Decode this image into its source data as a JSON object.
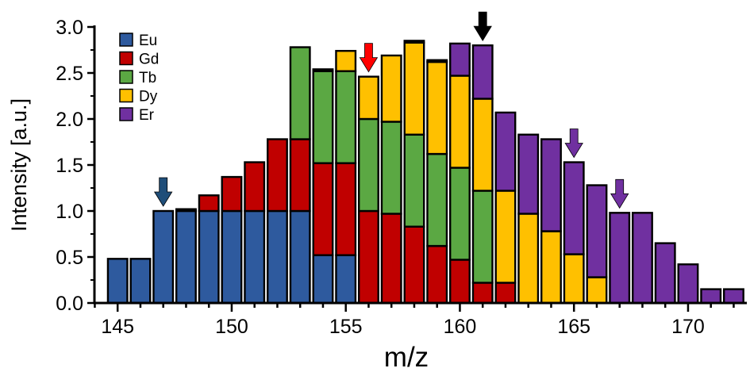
{
  "chart_data": {
    "type": "bar",
    "stacked": true,
    "xlabel": "m/z",
    "ylabel": "Intensity [a.u.]",
    "xlim": [
      143.5,
      172.5
    ],
    "ylim": [
      0,
      3.0
    ],
    "x_ticks": [
      145,
      150,
      155,
      160,
      165,
      170
    ],
    "y_ticks": [
      "0.0",
      "0.5",
      "1.0",
      "1.5",
      "2.0",
      "2.5",
      "3.0"
    ],
    "grid": false,
    "legend_position": "top-left",
    "series": [
      {
        "name": "Eu",
        "color": "#2e5a9e"
      },
      {
        "name": "Gd",
        "color": "#c00000"
      },
      {
        "name": "Tb",
        "color": "#5ba843"
      },
      {
        "name": "Dy",
        "color": "#ffc000"
      },
      {
        "name": "Er",
        "color": "#7030a0"
      }
    ],
    "bars": [
      {
        "x": 145,
        "segments": [
          {
            "s": "Eu",
            "v": 0.48
          }
        ]
      },
      {
        "x": 146,
        "segments": [
          {
            "s": "Eu",
            "v": 0.48
          }
        ]
      },
      {
        "x": 147,
        "segments": [
          {
            "s": "Eu",
            "v": 1.0
          }
        ]
      },
      {
        "x": 148,
        "segments": [
          {
            "s": "Eu",
            "v": 1.0
          },
          {
            "s": "Gd",
            "v": 0.02
          }
        ]
      },
      {
        "x": 149,
        "segments": [
          {
            "s": "Eu",
            "v": 1.0
          },
          {
            "s": "Gd",
            "v": 0.17
          }
        ]
      },
      {
        "x": 150,
        "segments": [
          {
            "s": "Eu",
            "v": 1.0
          },
          {
            "s": "Gd",
            "v": 0.37
          }
        ]
      },
      {
        "x": 151,
        "segments": [
          {
            "s": "Eu",
            "v": 1.0
          },
          {
            "s": "Gd",
            "v": 0.53
          }
        ]
      },
      {
        "x": 152,
        "segments": [
          {
            "s": "Eu",
            "v": 1.0
          },
          {
            "s": "Gd",
            "v": 0.78
          }
        ]
      },
      {
        "x": 153,
        "segments": [
          {
            "s": "Eu",
            "v": 1.0
          },
          {
            "s": "Gd",
            "v": 0.78
          },
          {
            "s": "Tb",
            "v": 1.0
          }
        ]
      },
      {
        "x": 154,
        "segments": [
          {
            "s": "Eu",
            "v": 0.52
          },
          {
            "s": "Gd",
            "v": 1.0
          },
          {
            "s": "Tb",
            "v": 1.0
          },
          {
            "s": "Dy",
            "v": 0.02
          }
        ]
      },
      {
        "x": 155,
        "segments": [
          {
            "s": "Eu",
            "v": 0.52
          },
          {
            "s": "Gd",
            "v": 1.0
          },
          {
            "s": "Tb",
            "v": 1.0
          },
          {
            "s": "Dy",
            "v": 0.22
          }
        ]
      },
      {
        "x": 156,
        "segments": [
          {
            "s": "Gd",
            "v": 1.0
          },
          {
            "s": "Tb",
            "v": 1.0
          },
          {
            "s": "Dy",
            "v": 0.46
          }
        ]
      },
      {
        "x": 157,
        "segments": [
          {
            "s": "Gd",
            "v": 0.97
          },
          {
            "s": "Tb",
            "v": 1.0
          },
          {
            "s": "Dy",
            "v": 0.72
          }
        ]
      },
      {
        "x": 158,
        "segments": [
          {
            "s": "Gd",
            "v": 0.83
          },
          {
            "s": "Tb",
            "v": 1.0
          },
          {
            "s": "Dy",
            "v": 1.0
          },
          {
            "s": "Er",
            "v": 0.02
          }
        ]
      },
      {
        "x": 159,
        "segments": [
          {
            "s": "Gd",
            "v": 0.62
          },
          {
            "s": "Tb",
            "v": 1.0
          },
          {
            "s": "Dy",
            "v": 1.0
          },
          {
            "s": "Er",
            "v": 0.02
          }
        ]
      },
      {
        "x": 160,
        "segments": [
          {
            "s": "Gd",
            "v": 0.47
          },
          {
            "s": "Tb",
            "v": 1.0
          },
          {
            "s": "Dy",
            "v": 1.0
          },
          {
            "s": "Er",
            "v": 0.35
          }
        ]
      },
      {
        "x": 161,
        "segments": [
          {
            "s": "Gd",
            "v": 0.22
          },
          {
            "s": "Tb",
            "v": 1.0
          },
          {
            "s": "Dy",
            "v": 1.0
          },
          {
            "s": "Er",
            "v": 0.58
          }
        ]
      },
      {
        "x": 162,
        "segments": [
          {
            "s": "Gd",
            "v": 0.22
          },
          {
            "s": "Dy",
            "v": 1.0
          },
          {
            "s": "Er",
            "v": 0.85
          }
        ]
      },
      {
        "x": 163,
        "segments": [
          {
            "s": "Dy",
            "v": 0.97
          },
          {
            "s": "Er",
            "v": 0.86
          }
        ]
      },
      {
        "x": 164,
        "segments": [
          {
            "s": "Dy",
            "v": 0.78
          },
          {
            "s": "Er",
            "v": 1.0
          }
        ]
      },
      {
        "x": 165,
        "segments": [
          {
            "s": "Dy",
            "v": 0.53
          },
          {
            "s": "Er",
            "v": 1.0
          }
        ]
      },
      {
        "x": 166,
        "segments": [
          {
            "s": "Dy",
            "v": 0.28
          },
          {
            "s": "Er",
            "v": 1.0
          }
        ]
      },
      {
        "x": 167,
        "segments": [
          {
            "s": "Er",
            "v": 0.98
          }
        ]
      },
      {
        "x": 168,
        "segments": [
          {
            "s": "Er",
            "v": 0.98
          }
        ]
      },
      {
        "x": 169,
        "segments": [
          {
            "s": "Er",
            "v": 0.65
          }
        ]
      },
      {
        "x": 170,
        "segments": [
          {
            "s": "Er",
            "v": 0.42
          }
        ]
      },
      {
        "x": 171,
        "segments": [
          {
            "s": "Er",
            "v": 0.15
          }
        ]
      },
      {
        "x": 172,
        "segments": [
          {
            "s": "Er",
            "v": 0.15
          }
        ]
      }
    ],
    "arrows": [
      {
        "x": 147,
        "y": 1.0,
        "color": "#1f4e79"
      },
      {
        "x": 156,
        "y": 2.46,
        "color": "#ff0000"
      },
      {
        "x": 161,
        "y": 2.8,
        "color": "#000000"
      },
      {
        "x": 165,
        "y": 1.53,
        "color": "#7030a0"
      },
      {
        "x": 167,
        "y": 0.98,
        "color": "#7030a0"
      }
    ]
  }
}
